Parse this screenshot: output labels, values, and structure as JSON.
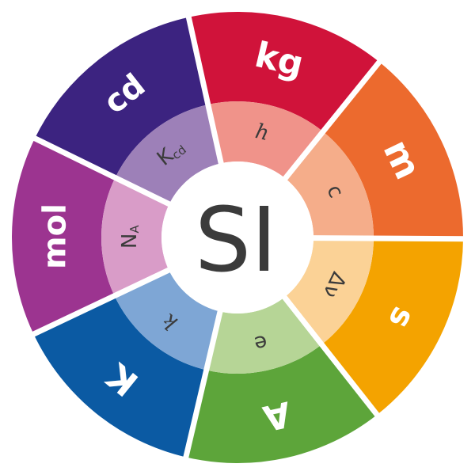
{
  "center": {
    "label": "SI"
  },
  "segments": [
    {
      "unit": "kg",
      "constant": "h",
      "subscript": "",
      "outer_color": "#d0133a",
      "inner_color": "#f0938a"
    },
    {
      "unit": "m",
      "constant": "c",
      "subscript": "",
      "outer_color": "#ec6a2e",
      "inner_color": "#f5ad8a"
    },
    {
      "unit": "s",
      "constant": "Δν",
      "subscript": "",
      "outer_color": "#f4a300",
      "inner_color": "#fbd296"
    },
    {
      "unit": "A",
      "constant": "e",
      "subscript": "",
      "outer_color": "#5da53a",
      "inner_color": "#b6d596"
    },
    {
      "unit": "K",
      "constant": "k",
      "subscript": "",
      "outer_color": "#0b5aa3",
      "inner_color": "#7ea6d5"
    },
    {
      "unit": "mol",
      "constant": "N",
      "subscript": "A",
      "outer_color": "#9c3490",
      "inner_color": "#d99cc8"
    },
    {
      "unit": "cd",
      "constant": "K",
      "subscript": "cd",
      "outer_color": "#3c2380",
      "inner_color": "#9d80b8"
    }
  ],
  "colors": {
    "gap": "#ffffff",
    "center_fill": "#ffffff",
    "text_dark": "#3b3b3b"
  }
}
